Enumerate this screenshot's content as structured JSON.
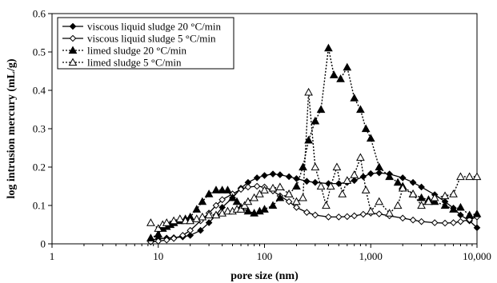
{
  "chart_data": {
    "type": "line",
    "title": "",
    "xlabel": "pore size (nm)",
    "ylabel": "log intrusion mercury (mL/g)",
    "xscale": "log",
    "xlim": [
      1,
      10000
    ],
    "ylim": [
      0,
      0.6
    ],
    "grid": false,
    "legend_position": "top-left",
    "x_ticks": [
      {
        "value": 1,
        "label": "1"
      },
      {
        "value": 10,
        "label": "10"
      },
      {
        "value": 100,
        "label": "100"
      },
      {
        "value": 1000,
        "label": "1,000"
      },
      {
        "value": 10000,
        "label": "10,000"
      }
    ],
    "y_ticks": [
      {
        "value": 0,
        "label": "0"
      },
      {
        "value": 0.1,
        "label": "0.1"
      },
      {
        "value": 0.2,
        "label": "0.2"
      },
      {
        "value": 0.3,
        "label": "0.3"
      },
      {
        "value": 0.4,
        "label": "0.4"
      },
      {
        "value": 0.5,
        "label": "0.5"
      },
      {
        "value": 0.6,
        "label": "0.6"
      }
    ],
    "series": [
      {
        "name": "viscous liquid sludge 20 °C/min",
        "marker": "diamond-filled",
        "line": "solid",
        "color": "#000000",
        "points": [
          [
            8.5,
            0.01
          ],
          [
            10,
            0.013
          ],
          [
            12,
            0.015
          ],
          [
            14,
            0.016
          ],
          [
            17,
            0.018
          ],
          [
            20,
            0.022
          ],
          [
            25,
            0.035
          ],
          [
            30,
            0.055
          ],
          [
            35,
            0.075
          ],
          [
            40,
            0.095
          ],
          [
            50,
            0.12
          ],
          [
            60,
            0.145
          ],
          [
            70,
            0.16
          ],
          [
            85,
            0.172
          ],
          [
            100,
            0.178
          ],
          [
            120,
            0.182
          ],
          [
            140,
            0.18
          ],
          [
            170,
            0.175
          ],
          [
            200,
            0.17
          ],
          [
            250,
            0.163
          ],
          [
            300,
            0.16
          ],
          [
            400,
            0.157
          ],
          [
            500,
            0.157
          ],
          [
            600,
            0.16
          ],
          [
            700,
            0.165
          ],
          [
            850,
            0.175
          ],
          [
            1000,
            0.183
          ],
          [
            1200,
            0.185
          ],
          [
            1500,
            0.182
          ],
          [
            2000,
            0.172
          ],
          [
            2500,
            0.16
          ],
          [
            3000,
            0.148
          ],
          [
            4000,
            0.128
          ],
          [
            5000,
            0.11
          ],
          [
            6000,
            0.093
          ],
          [
            7000,
            0.075
          ],
          [
            8500,
            0.06
          ],
          [
            10000,
            0.042
          ]
        ]
      },
      {
        "name": "viscous liquid sludge 5 °C/min",
        "marker": "diamond-open",
        "line": "solid",
        "color": "#000000",
        "points": [
          [
            8.5,
            0.005
          ],
          [
            10,
            0.007
          ],
          [
            12,
            0.01
          ],
          [
            14,
            0.014
          ],
          [
            17,
            0.022
          ],
          [
            20,
            0.035
          ],
          [
            25,
            0.06
          ],
          [
            30,
            0.08
          ],
          [
            35,
            0.1
          ],
          [
            40,
            0.115
          ],
          [
            50,
            0.13
          ],
          [
            60,
            0.142
          ],
          [
            70,
            0.148
          ],
          [
            85,
            0.15
          ],
          [
            100,
            0.148
          ],
          [
            120,
            0.138
          ],
          [
            140,
            0.125
          ],
          [
            170,
            0.11
          ],
          [
            200,
            0.095
          ],
          [
            250,
            0.082
          ],
          [
            300,
            0.075
          ],
          [
            400,
            0.07
          ],
          [
            500,
            0.07
          ],
          [
            600,
            0.071
          ],
          [
            700,
            0.073
          ],
          [
            850,
            0.077
          ],
          [
            1000,
            0.08
          ],
          [
            1200,
            0.078
          ],
          [
            1500,
            0.073
          ],
          [
            2000,
            0.067
          ],
          [
            2500,
            0.062
          ],
          [
            3000,
            0.058
          ],
          [
            4000,
            0.055
          ],
          [
            5000,
            0.054
          ],
          [
            6000,
            0.055
          ],
          [
            7000,
            0.058
          ],
          [
            8500,
            0.063
          ],
          [
            10000,
            0.07
          ]
        ]
      },
      {
        "name": "limed sludge 20 °C/min",
        "marker": "triangle-filled",
        "line": "dotted",
        "color": "#000000",
        "points": [
          [
            8.5,
            0.015
          ],
          [
            10,
            0.025
          ],
          [
            11,
            0.04
          ],
          [
            12,
            0.045
          ],
          [
            13,
            0.05
          ],
          [
            14,
            0.055
          ],
          [
            16,
            0.06
          ],
          [
            18,
            0.065
          ],
          [
            20,
            0.07
          ],
          [
            23,
            0.09
          ],
          [
            26,
            0.11
          ],
          [
            30,
            0.13
          ],
          [
            35,
            0.14
          ],
          [
            40,
            0.14
          ],
          [
            45,
            0.14
          ],
          [
            50,
            0.12
          ],
          [
            55,
            0.11
          ],
          [
            60,
            0.095
          ],
          [
            70,
            0.085
          ],
          [
            80,
            0.08
          ],
          [
            90,
            0.085
          ],
          [
            100,
            0.09
          ],
          [
            120,
            0.1
          ],
          [
            140,
            0.12
          ],
          [
            170,
            0.13
          ],
          [
            200,
            0.15
          ],
          [
            230,
            0.2
          ],
          [
            260,
            0.27
          ],
          [
            300,
            0.32
          ],
          [
            340,
            0.35
          ],
          [
            400,
            0.51
          ],
          [
            450,
            0.44
          ],
          [
            520,
            0.43
          ],
          [
            600,
            0.46
          ],
          [
            700,
            0.38
          ],
          [
            800,
            0.35
          ],
          [
            900,
            0.3
          ],
          [
            1000,
            0.275
          ],
          [
            1200,
            0.2
          ],
          [
            1500,
            0.175
          ],
          [
            1800,
            0.16
          ],
          [
            2000,
            0.15
          ],
          [
            2500,
            0.13
          ],
          [
            3000,
            0.12
          ],
          [
            3500,
            0.115
          ],
          [
            4000,
            0.11
          ],
          [
            5000,
            0.1
          ],
          [
            6000,
            0.09
          ],
          [
            7000,
            0.095
          ],
          [
            8500,
            0.075
          ],
          [
            10000,
            0.078
          ]
        ]
      },
      {
        "name": "limed sludge 5 °C/min",
        "marker": "triangle-open",
        "line": "dotted",
        "color": "#000000",
        "points": [
          [
            8.5,
            0.055
          ],
          [
            10,
            0.04
          ],
          [
            11,
            0.05
          ],
          [
            12,
            0.055
          ],
          [
            14,
            0.06
          ],
          [
            16,
            0.065
          ],
          [
            18,
            0.06
          ],
          [
            20,
            0.06
          ],
          [
            23,
            0.065
          ],
          [
            26,
            0.07
          ],
          [
            30,
            0.075
          ],
          [
            35,
            0.075
          ],
          [
            40,
            0.08
          ],
          [
            45,
            0.085
          ],
          [
            50,
            0.085
          ],
          [
            55,
            0.09
          ],
          [
            60,
            0.09
          ],
          [
            65,
            0.1
          ],
          [
            70,
            0.11
          ],
          [
            80,
            0.12
          ],
          [
            90,
            0.13
          ],
          [
            100,
            0.14
          ],
          [
            120,
            0.145
          ],
          [
            140,
            0.148
          ],
          [
            170,
            0.13
          ],
          [
            200,
            0.11
          ],
          [
            230,
            0.12
          ],
          [
            260,
            0.395
          ],
          [
            300,
            0.2
          ],
          [
            340,
            0.15
          ],
          [
            380,
            0.1
          ],
          [
            420,
            0.15
          ],
          [
            480,
            0.2
          ],
          [
            540,
            0.13
          ],
          [
            600,
            0.165
          ],
          [
            700,
            0.18
          ],
          [
            800,
            0.225
          ],
          [
            900,
            0.14
          ],
          [
            1000,
            0.085
          ],
          [
            1200,
            0.11
          ],
          [
            1500,
            0.08
          ],
          [
            1800,
            0.1
          ],
          [
            2000,
            0.145
          ],
          [
            2500,
            0.13
          ],
          [
            3000,
            0.1
          ],
          [
            3500,
            0.11
          ],
          [
            4000,
            0.12
          ],
          [
            5000,
            0.125
          ],
          [
            6000,
            0.13
          ],
          [
            7000,
            0.175
          ],
          [
            8500,
            0.175
          ],
          [
            10000,
            0.175
          ]
        ]
      }
    ]
  }
}
